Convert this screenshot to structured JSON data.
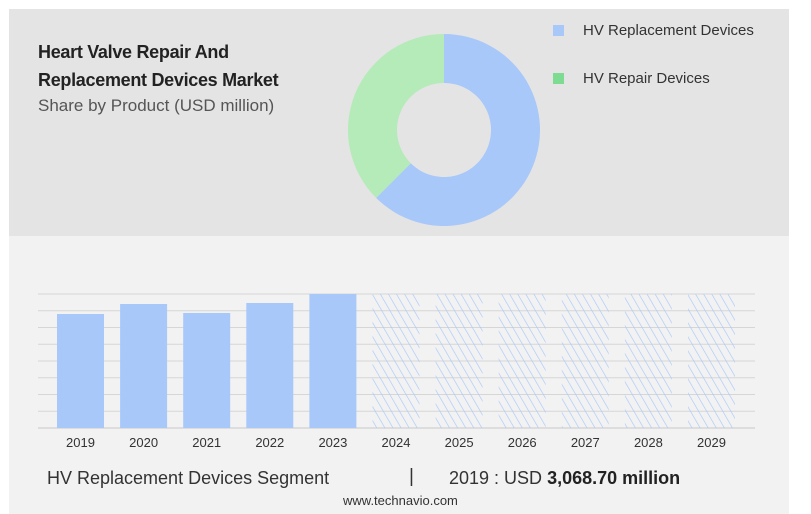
{
  "chart_data": [
    {
      "type": "pie",
      "title": "Heart Valve Repair And Replacement Devices Market",
      "subtitle": "Share by Product (USD million)",
      "donut": true,
      "slices": [
        {
          "label": "HV Replacement Devices",
          "share": 62.5,
          "color": "#a8c8fa"
        },
        {
          "label": "HV Repair Devices",
          "share": 37.5,
          "color": "#b5eab9"
        }
      ],
      "legend_colors": [
        "#a8c8fa",
        "#7ddc92"
      ],
      "legend_placement": "top-right"
    },
    {
      "type": "bar",
      "categories": [
        "2019",
        "2020",
        "2021",
        "2022",
        "2023",
        "2024",
        "2025",
        "2026",
        "2027",
        "2028",
        "2029"
      ],
      "values": [
        3068.7,
        3338,
        3096,
        3365,
        3607,
        null,
        null,
        null,
        null,
        null,
        null
      ],
      "forecast_categories": [
        "2024",
        "2025",
        "2026",
        "2027",
        "2028",
        "2029"
      ],
      "ylim": [
        0,
        3607
      ],
      "grid": true,
      "color": "#a8c8fa"
    }
  ],
  "title_line1": "Heart Valve Repair And",
  "title_line2": "Replacement Devices Market",
  "subtitle": "Share by Product (USD million)",
  "footer": {
    "segment": "HV Replacement Devices Segment",
    "separator": "|",
    "year_label": "2019 : USD",
    "value": "3,068.70 million"
  },
  "site": "www.technavio.com"
}
